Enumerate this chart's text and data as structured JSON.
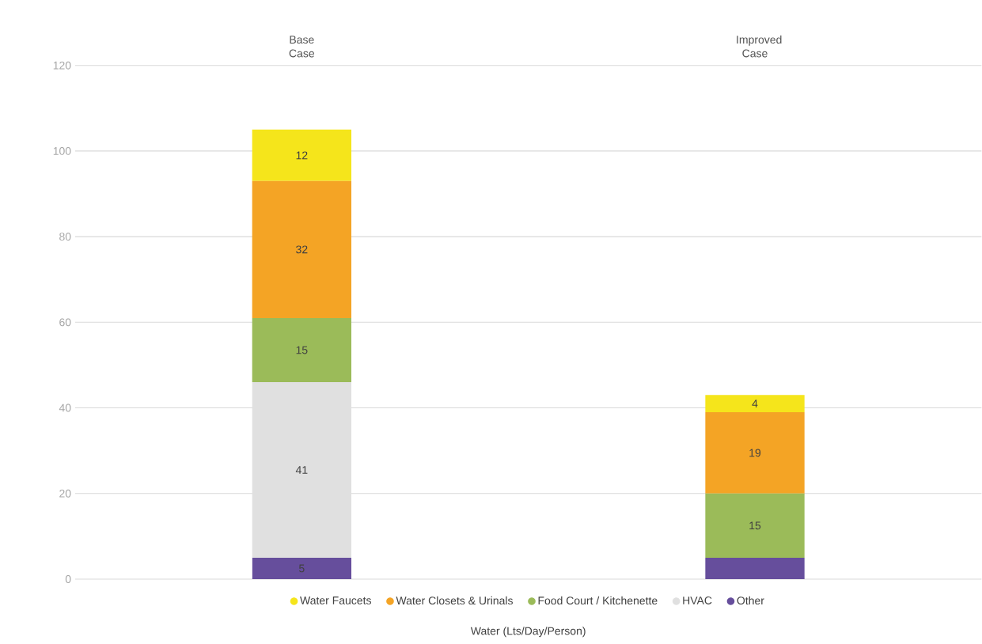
{
  "chart_data": {
    "type": "bar",
    "stacked": true,
    "categories": [
      "Base Case",
      "Improved Case"
    ],
    "xlabel": "Water (Lts/Day/Person)",
    "ylim": [
      0,
      120
    ],
    "yticks": [
      0,
      20,
      40,
      60,
      80,
      100,
      120
    ],
    "grid": "y",
    "legend": "bottom",
    "series": [
      {
        "name": "Other",
        "color": "#664e9c",
        "values": [
          5,
          5
        ],
        "value_labels": [
          "5",
          null
        ]
      },
      {
        "name": "HVAC",
        "color": "#e0e0e0",
        "values": [
          41,
          0
        ],
        "value_labels": [
          "41",
          null
        ]
      },
      {
        "name": "Food Court / Kitchenette",
        "color": "#9bbb59",
        "values": [
          15,
          15
        ],
        "value_labels": [
          "15",
          "15"
        ]
      },
      {
        "name": "Water Closets & Urinals",
        "color": "#f4a425",
        "values": [
          32,
          19
        ],
        "value_labels": [
          "32",
          "19"
        ]
      },
      {
        "name": "Water Faucets",
        "color": "#f5e51b",
        "values": [
          12,
          4
        ],
        "value_labels": [
          "12",
          "4"
        ]
      }
    ]
  }
}
